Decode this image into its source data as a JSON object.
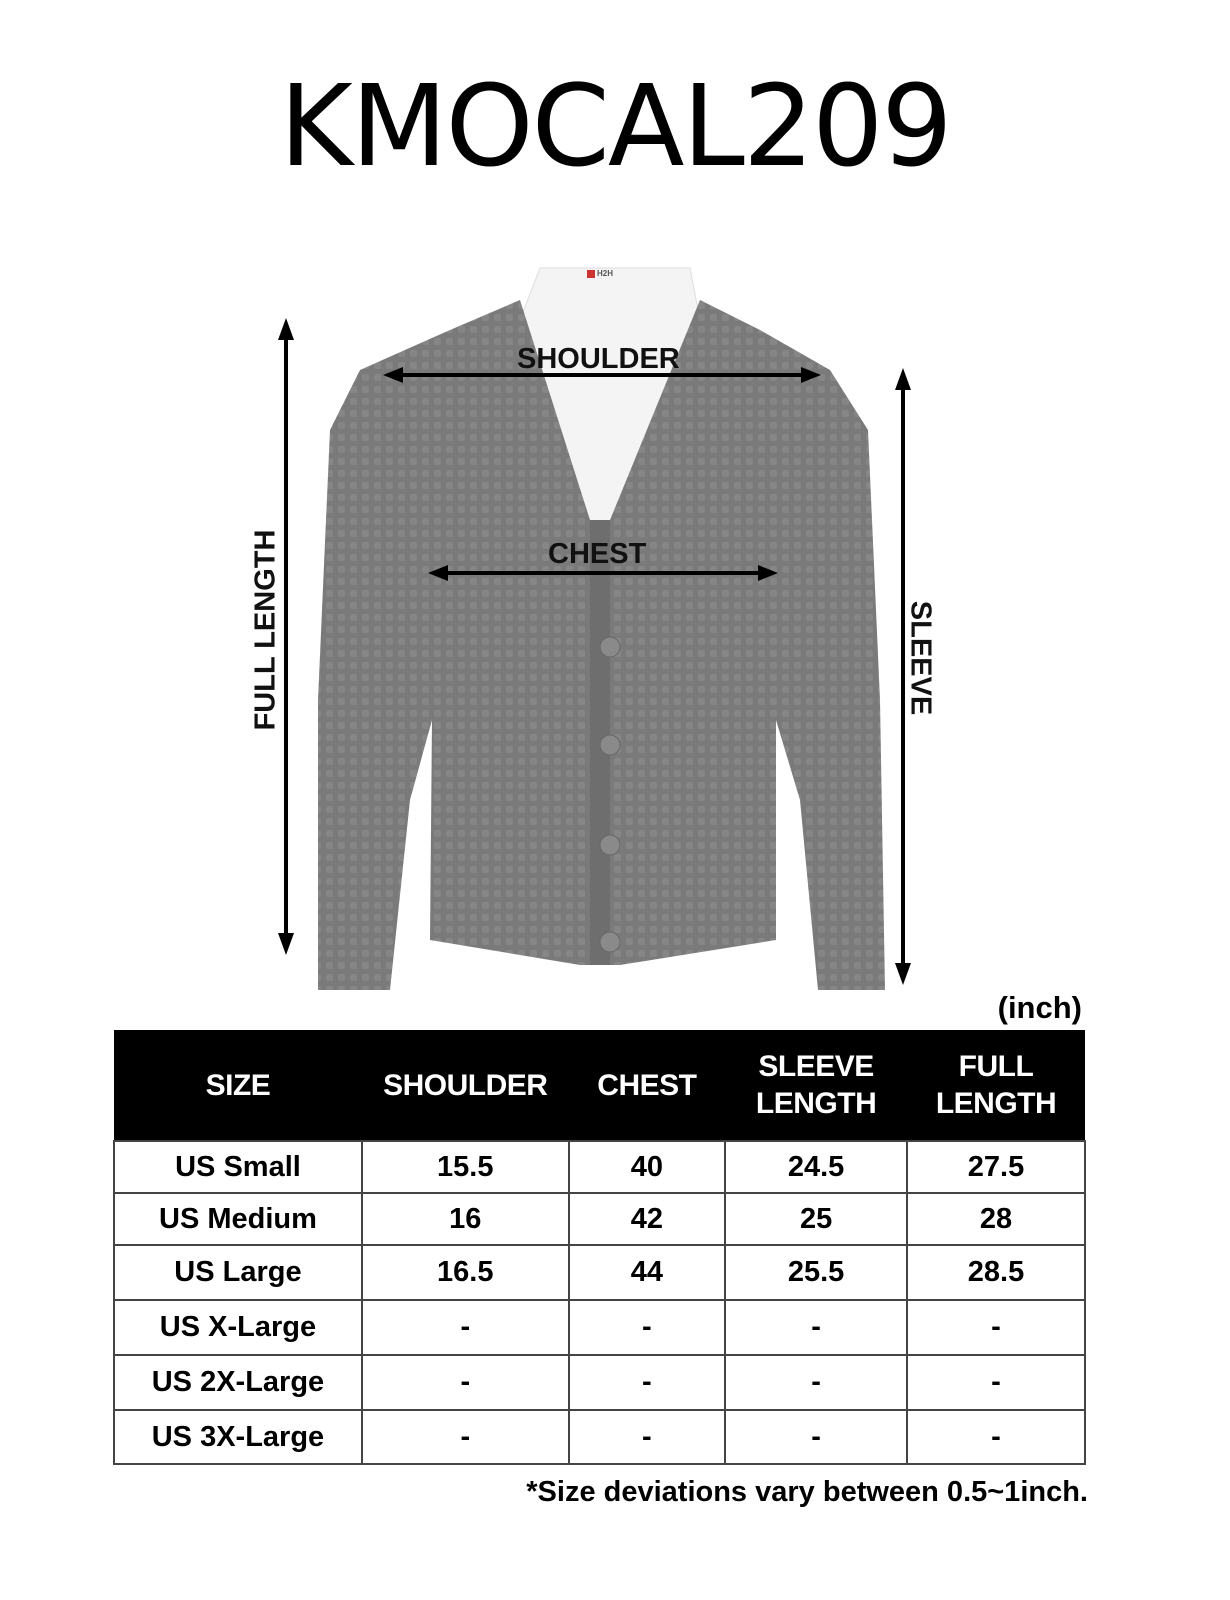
{
  "title": "KMOCAL209",
  "diagram": {
    "labels": {
      "shoulder": "SHOULDER",
      "chest": "CHEST",
      "full_length": "FULL LENGTH",
      "sleeve": "SLEEVE"
    },
    "garment_color": "#7a7a7a",
    "brand_tag": "H2H"
  },
  "unit": "(inch)",
  "table": {
    "headers": [
      "SIZE",
      "SHOULDER",
      "CHEST",
      "SLEEVE LENGTH",
      "FULL LENGTH"
    ],
    "rows": [
      [
        "US Small",
        "15.5",
        "40",
        "24.5",
        "27.5"
      ],
      [
        "US Medium",
        "16",
        "42",
        "25",
        "28"
      ],
      [
        "US Large",
        "16.5",
        "44",
        "25.5",
        "28.5"
      ],
      [
        "US X-Large",
        "-",
        "-",
        "-",
        "-"
      ],
      [
        "US 2X-Large",
        "-",
        "-",
        "-",
        "-"
      ],
      [
        "US 3X-Large",
        "-",
        "-",
        "-",
        "-"
      ]
    ]
  },
  "note": "*Size deviations vary between 0.5~1inch."
}
